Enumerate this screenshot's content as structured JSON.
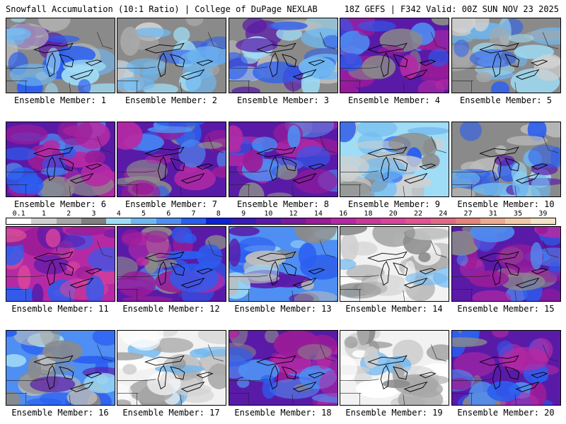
{
  "header": {
    "left_title": "Snowfall Accumulation (10:1 Ratio) | College of DuPage NEXLAB",
    "right_title": "18Z GEFS | F342 Valid: 00Z SUN NOV 23 2025"
  },
  "colorbar": {
    "ticks": [
      "0.1",
      "1",
      "2",
      "3",
      "4",
      "5",
      "6",
      "7",
      "8",
      "9",
      "10",
      "12",
      "14",
      "16",
      "18",
      "20",
      "22",
      "24",
      "27",
      "31",
      "35",
      "39"
    ],
    "colors": [
      "#ffffff",
      "#d0d0d0",
      "#a8a8a8",
      "#808080",
      "#9fdcf5",
      "#6fb7f0",
      "#4f8ef2",
      "#2a5ef0",
      "#0b24d8",
      "#3a1ab8",
      "#5a1aa8",
      "#7a1a9c",
      "#9a1c98",
      "#b52aa4",
      "#c83a9a",
      "#d8449c",
      "#e05592",
      "#e06a88",
      "#e4847c",
      "#ebab8e",
      "#f2c9a8",
      "#f7e3c8"
    ]
  },
  "members": [
    {
      "label": "Ensemble Member: 1",
      "dominant": "mixed"
    },
    {
      "label": "Ensemble Member: 2",
      "dominant": "gray"
    },
    {
      "label": "Ensemble Member: 3",
      "dominant": "mixed"
    },
    {
      "label": "Ensemble Member: 4",
      "dominant": "purple"
    },
    {
      "label": "Ensemble Member: 5",
      "dominant": "gray"
    },
    {
      "label": "Ensemble Member: 6",
      "dominant": "purple"
    },
    {
      "label": "Ensemble Member: 7",
      "dominant": "purple"
    },
    {
      "label": "Ensemble Member: 8",
      "dominant": "purple"
    },
    {
      "label": "Ensemble Member: 9",
      "dominant": "light"
    },
    {
      "label": "Ensemble Member: 10",
      "dominant": "mixed"
    },
    {
      "label": "Ensemble Member: 11",
      "dominant": "magenta"
    },
    {
      "label": "Ensemble Member: 12",
      "dominant": "purple"
    },
    {
      "label": "Ensemble Member: 13",
      "dominant": "blue"
    },
    {
      "label": "Ensemble Member: 14",
      "dominant": "white"
    },
    {
      "label": "Ensemble Member: 15",
      "dominant": "purple"
    },
    {
      "label": "Ensemble Member: 16",
      "dominant": "blue"
    },
    {
      "label": "Ensemble Member: 17",
      "dominant": "white"
    },
    {
      "label": "Ensemble Member: 18",
      "dominant": "purple"
    },
    {
      "label": "Ensemble Member: 19",
      "dominant": "white"
    },
    {
      "label": "Ensemble Member: 20",
      "dominant": "purple"
    }
  ]
}
